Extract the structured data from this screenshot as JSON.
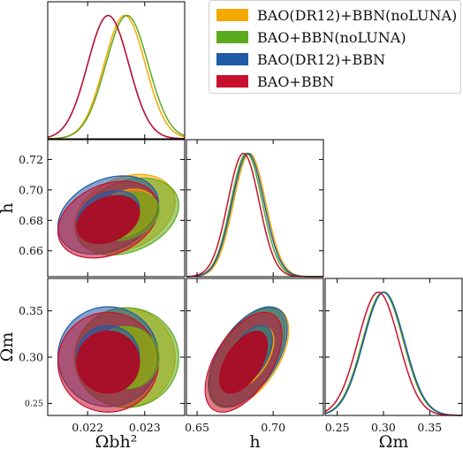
{
  "chart_data": {
    "type": "corner-plot",
    "parameters": [
      "Ωbh²",
      "h",
      "Ωm"
    ],
    "x_labels": [
      "Ωbh²",
      "h",
      "Ωm"
    ],
    "y_labels": [
      "h",
      "Ωm"
    ],
    "ranges": {
      "Ωbh²": [
        0.0213,
        0.0237
      ],
      "h": [
        0.643,
        0.733
      ],
      "Ωm": [
        0.237,
        0.385
      ]
    },
    "ticks": {
      "Ωbh²": [
        "0.022",
        "0.023"
      ],
      "h_x": [
        "0.65",
        "0.70"
      ],
      "h_y": [
        "0.72",
        "0.70",
        "0.68",
        "0.66"
      ],
      "Ωm_x": [
        "0.25",
        "0.30",
        "0.35"
      ],
      "Ωm_y": [
        "0.35",
        "0.30",
        "0.25"
      ]
    },
    "legend_placement": "top-right",
    "series": [
      {
        "name": "BAO(DR12)+BBN(noLUNA)",
        "color": "#f5a700",
        "mean": {
          "Ωbh²": 0.02265,
          "h": 0.6845,
          "Ωm": 0.2995
        },
        "sigma": {
          "Ωbh²": 0.00036,
          "h": 0.0105,
          "Ωm": 0.022
        }
      },
      {
        "name": "BAO+BBN(noLUNA)",
        "color": "#5aaa1e",
        "mean": {
          "Ωbh²": 0.02269,
          "h": 0.6825,
          "Ωm": 0.2995
        },
        "sigma": {
          "Ωbh²": 0.00037,
          "h": 0.0103,
          "Ωm": 0.022
        }
      },
      {
        "name": "BAO(DR12)+BBN",
        "color": "#1f5aa6",
        "mean": {
          "Ωbh²": 0.02236,
          "h": 0.6835,
          "Ωm": 0.3005
        },
        "sigma": {
          "Ωbh²": 0.00036,
          "h": 0.0105,
          "Ωm": 0.022
        }
      },
      {
        "name": "BAO+BBN",
        "color": "#c8102e",
        "mean": {
          "Ωbh²": 0.02236,
          "h": 0.6805,
          "Ωm": 0.2945
        },
        "sigma": {
          "Ωbh²": 0.00036,
          "h": 0.0103,
          "Ωm": 0.022
        }
      }
    ]
  }
}
